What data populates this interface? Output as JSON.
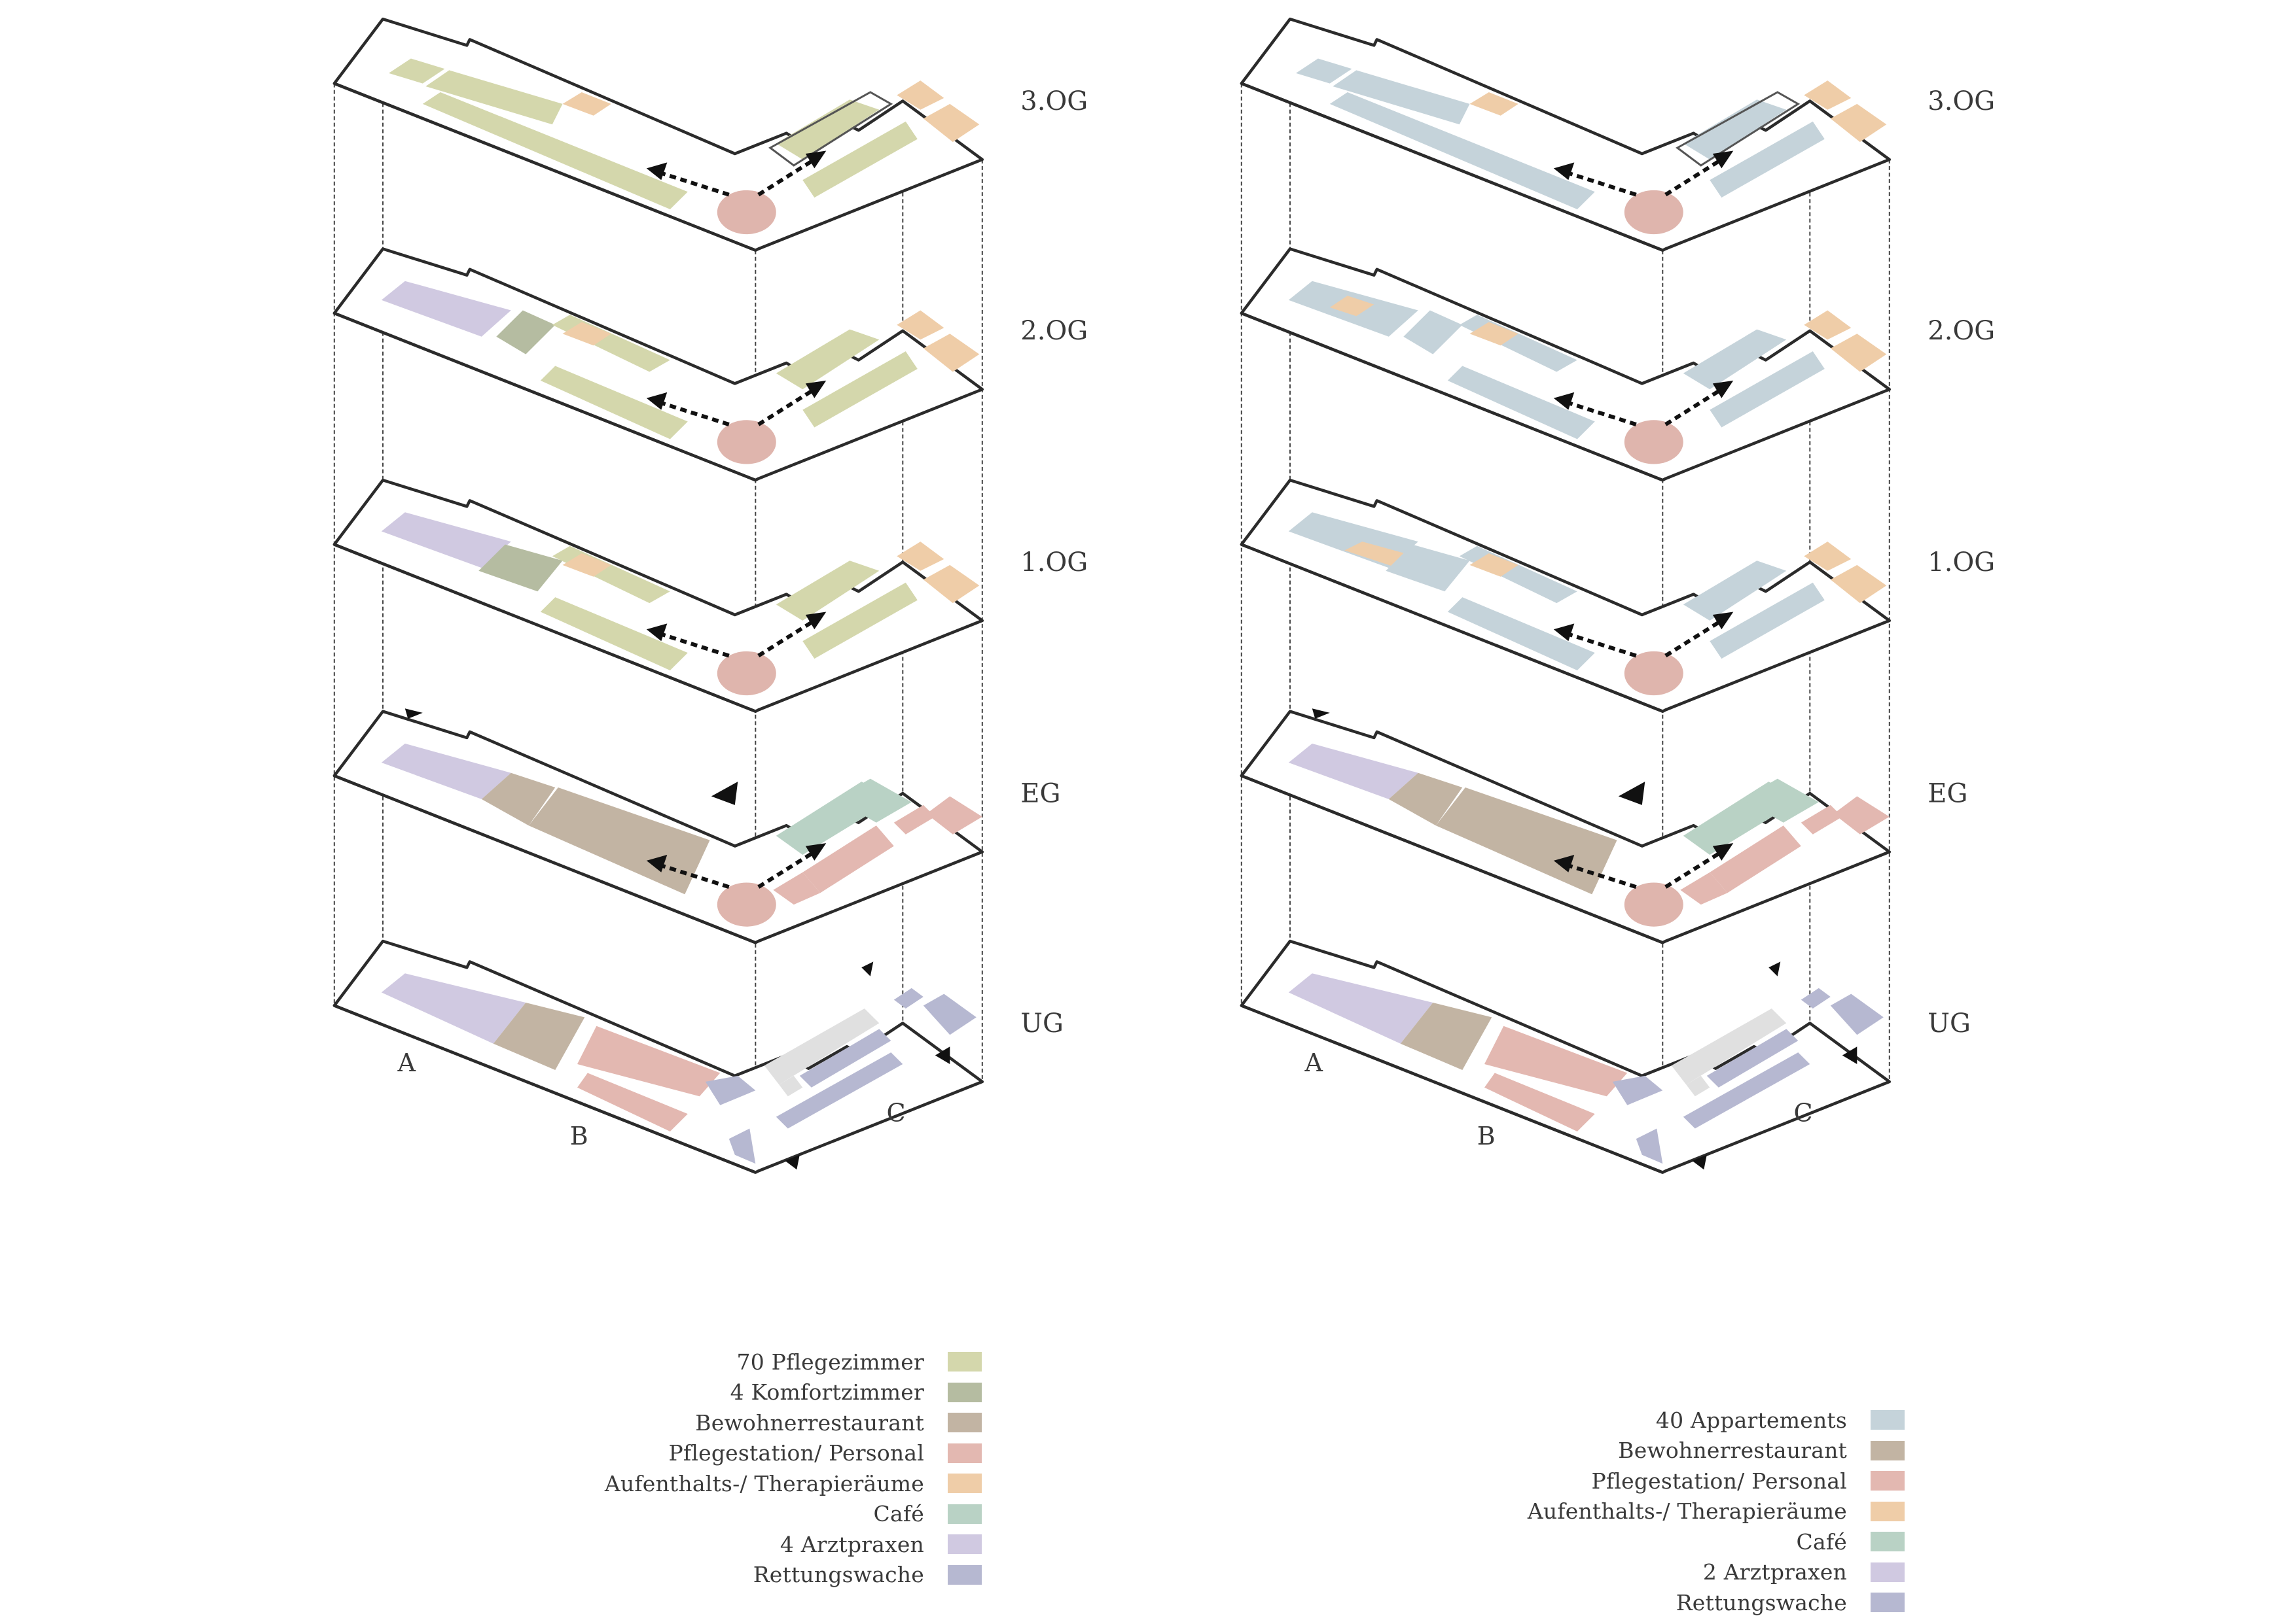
{
  "levels": [
    "3.OG",
    "2.OG",
    "1.OG",
    "EG",
    "UG"
  ],
  "section_labels": [
    "A",
    "B",
    "C"
  ],
  "colors": {
    "pflegezimmer": "#d4d7ac",
    "komfortzimmer": "#b5bca1",
    "restaurant": "#c2b4a3",
    "personal": "#e3b8b1",
    "aufenthalt": "#efcda8",
    "cafe": "#b9d2c5",
    "arztpraxen": "#d0c9e1",
    "rettungswache": "#b6b8d1",
    "appartements": "#c5d3da",
    "core": "#dfb5ad",
    "ug_service": "#e0e0e0"
  },
  "variants": [
    {
      "legend": [
        {
          "label": "70 Pflegezimmer",
          "color": "#d4d7ac"
        },
        {
          "label": "4 Komfortzimmer",
          "color": "#b5bca1"
        },
        {
          "label": "Bewohnerrestaurant",
          "color": "#c2b4a3"
        },
        {
          "label": "Pflegestation/ Personal",
          "color": "#e3b8b1"
        },
        {
          "label": "Aufenthalts-/ Therapieräume",
          "color": "#efcda8"
        },
        {
          "label": "Café",
          "color": "#b9d2c5"
        },
        {
          "label": "4 Arztpraxen",
          "color": "#d0c9e1"
        },
        {
          "label": "Rettungswache",
          "color": "#b6b8d1"
        }
      ]
    },
    {
      "legend": [
        {
          "label": "40 Appartements",
          "color": "#c5d3da"
        },
        {
          "label": "Bewohnerrestaurant",
          "color": "#c2b4a3"
        },
        {
          "label": "Pflegestation/ Personal",
          "color": "#e3b8b1"
        },
        {
          "label": "Aufenthalts-/ Therapieräume",
          "color": "#efcda8"
        },
        {
          "label": "Café",
          "color": "#b9d2c5"
        },
        {
          "label": "2 Arztpraxen",
          "color": "#d0c9e1"
        },
        {
          "label": "Rettungswache",
          "color": "#b6b8d1"
        }
      ]
    }
  ]
}
